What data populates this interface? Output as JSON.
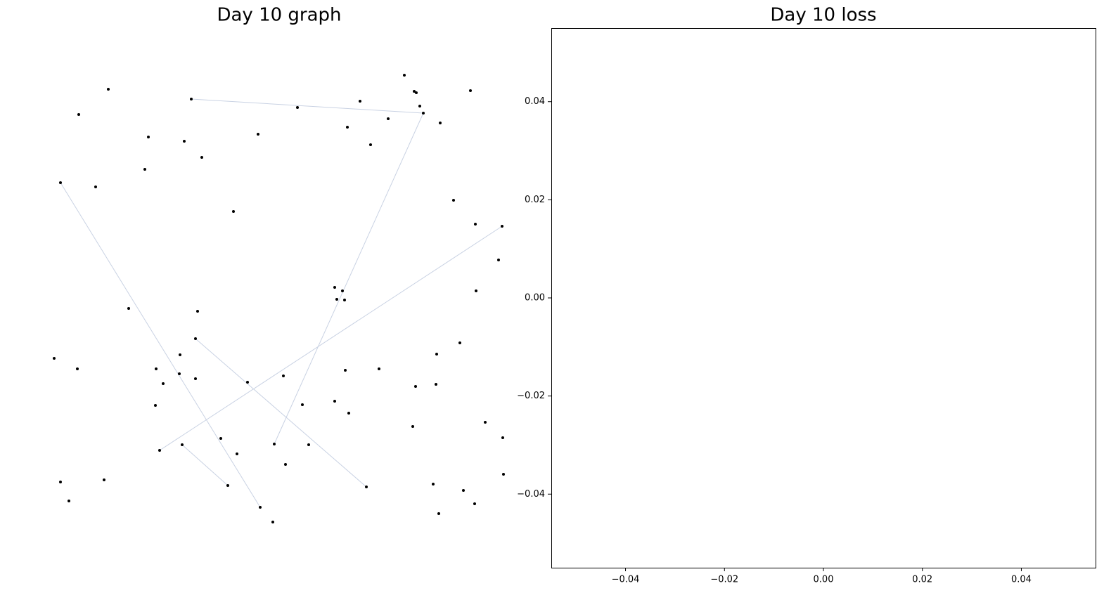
{
  "chart_data": [
    {
      "type": "network",
      "title": "Day 10 graph",
      "x": [
        565,
        579,
        582,
        587,
        592,
        616,
        659,
        502,
        542,
        484,
        517,
        413,
        262,
        144,
        102,
        201,
        252,
        277,
        357,
        196,
        76,
        126,
        322,
        635,
        666,
        704,
        699,
        667,
        466,
        477,
        469,
        480,
        173,
        271,
        268,
        67,
        100,
        246,
        212,
        245,
        222,
        268,
        211,
        342,
        393,
        481,
        529,
        611,
        644,
        581,
        610,
        420,
        466,
        486,
        577,
        680,
        705,
        706,
        217,
        249,
        304,
        327,
        380,
        429,
        396,
        314,
        511,
        606,
        649,
        665,
        614,
        76,
        138,
        88,
        360,
        378
      ],
      "y": [
        701,
        678,
        676,
        657,
        647,
        633,
        679,
        664,
        639,
        627,
        602,
        655,
        667,
        681,
        645,
        613,
        607,
        584,
        617,
        567,
        548,
        542,
        507,
        523,
        489,
        486,
        438,
        394,
        399,
        394,
        382,
        381,
        369,
        365,
        326,
        298,
        283,
        303,
        283,
        276,
        262,
        269,
        231,
        264,
        273,
        281,
        283,
        304,
        320,
        258,
        261,
        232,
        237,
        220,
        201,
        207,
        185,
        133,
        167,
        175,
        184,
        162,
        176,
        175,
        147,
        117,
        115,
        119,
        110,
        91,
        77,
        122,
        125,
        95,
        86,
        65
      ],
      "edges": [
        [
          20,
          74
        ],
        [
          25,
          58
        ],
        [
          34,
          66
        ],
        [
          59,
          65
        ],
        [
          4,
          62
        ],
        [
          12,
          4
        ]
      ],
      "xlim": [
        0,
        774
      ],
      "ylim": [
        0,
        768
      ],
      "node_color": "#000000",
      "edge_color": "#c9d2e3"
    },
    {
      "type": "line",
      "title": "Day 10 loss",
      "x": [],
      "values": [],
      "color": "#1f77b4",
      "xlim": [
        -0.055,
        0.055
      ],
      "ylim": [
        -0.055,
        0.055
      ],
      "xticks": [
        {
          "value": -0.04,
          "label": "−0.04"
        },
        {
          "value": -0.02,
          "label": "−0.02"
        },
        {
          "value": 0,
          "label": "0.00"
        },
        {
          "value": 0.02,
          "label": "0.02"
        },
        {
          "value": 0.04,
          "label": "0.04"
        }
      ],
      "yticks": [
        {
          "value": -0.04,
          "label": "−0.04"
        },
        {
          "value": -0.02,
          "label": "−0.02"
        },
        {
          "value": 0,
          "label": "0.00"
        },
        {
          "value": 0.02,
          "label": "0.02"
        },
        {
          "value": 0.04,
          "label": "0.04"
        }
      ]
    }
  ]
}
